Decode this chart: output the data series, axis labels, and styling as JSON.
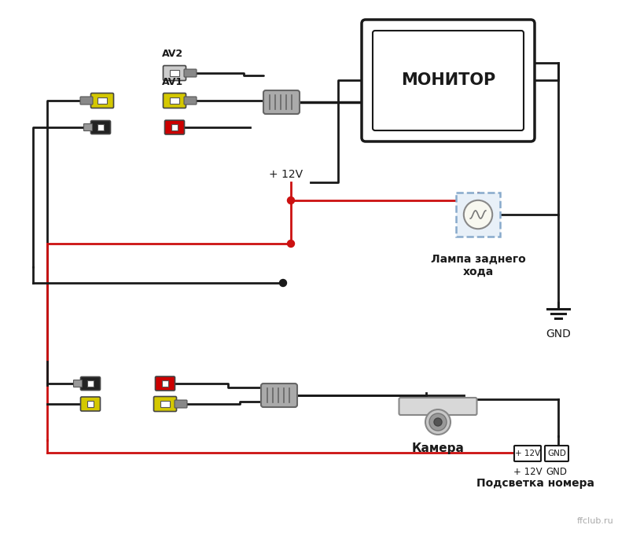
{
  "bg_color": "#ffffff",
  "monitor_label": "МОНИТОР",
  "lamp_label": "Лампа заднего\nхода",
  "gnd_label": "GND",
  "camera_label": "Камера",
  "backlight_label": "Подсветка номера",
  "plus12v_label_top": "+ 12V",
  "plus12v_label_bot": "+ 12V",
  "gnd_label_bot": "GND",
  "av1_label": "AV1",
  "av2_label": "AV2",
  "ffclub_label": "ffclub.ru",
  "line_color_black": "#1a1a1a",
  "line_color_red": "#cc1111",
  "connector_yellow": "#d4c800",
  "connector_red": "#cc0000",
  "connector_black": "#222222",
  "connector_gray": "#aaaaaa",
  "connector_white": "#cccccc",
  "lamp_dashed_color": "#88aacc",
  "lamp_fill": "#e8e8e0"
}
